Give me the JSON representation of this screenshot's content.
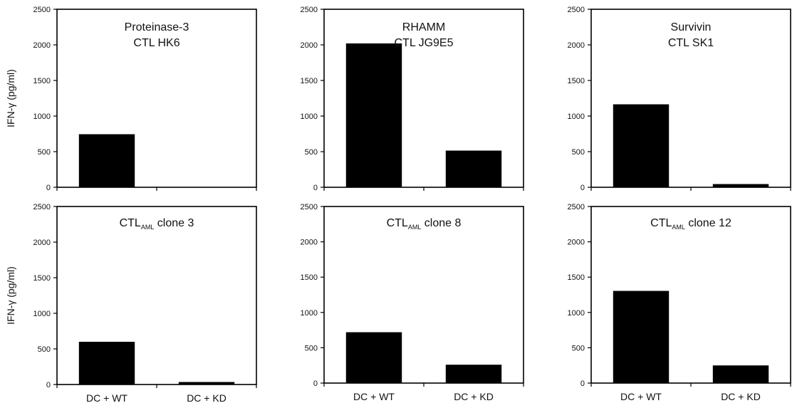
{
  "figure": {
    "ylabel": "IFN-γ (pg/ml)"
  },
  "chart_data": [
    {
      "type": "bar",
      "title_lines": [
        "Proteinase-3",
        "CTL HK6"
      ],
      "categories": [
        "DC + WT",
        "DC + KD"
      ],
      "series": [
        {
          "values": [
            745,
            0
          ]
        }
      ],
      "ylim": [
        0,
        2500
      ],
      "yticks": [
        "0",
        "500",
        "1000",
        "1500",
        "2000",
        "2500"
      ],
      "ylabel": "IFN-γ (pg/ml)",
      "show_xticklabels": false
    },
    {
      "type": "bar",
      "title_lines": [
        "RHAMM",
        "CTL JG9E5"
      ],
      "categories": [
        "DC + WT",
        "DC + KD"
      ],
      "series": [
        {
          "values": [
            2020,
            515
          ]
        }
      ],
      "ylim": [
        0,
        2500
      ],
      "yticks": [
        "0",
        "500",
        "1000",
        "1500",
        "2000",
        "2500"
      ],
      "ylabel": "",
      "show_xticklabels": false
    },
    {
      "type": "bar",
      "title_lines": [
        "Survivin",
        "CTL SK1"
      ],
      "categories": [
        "DC + WT",
        "DC + KD"
      ],
      "series": [
        {
          "values": [
            1165,
            45
          ]
        }
      ],
      "ylim": [
        0,
        2500
      ],
      "yticks": [
        "0",
        "500",
        "1000",
        "1500",
        "2000",
        "2500"
      ],
      "ylabel": "",
      "show_xticklabels": false
    },
    {
      "type": "bar",
      "title_main": "CTL",
      "title_sub": "AML",
      "title_rest": " clone 3",
      "categories": [
        "DC + WT",
        "DC + KD"
      ],
      "series": [
        {
          "values": [
            600,
            35
          ]
        }
      ],
      "ylim": [
        0,
        2500
      ],
      "yticks": [
        "0",
        "500",
        "1000",
        "1500",
        "2000",
        "2500"
      ],
      "ylabel": "IFN-γ (pg/ml)",
      "show_xticklabels": true
    },
    {
      "type": "bar",
      "title_main": "CTL",
      "title_sub": "AML",
      "title_rest": " clone 8",
      "categories": [
        "DC + WT",
        "DC + KD"
      ],
      "series": [
        {
          "values": [
            720,
            260
          ]
        }
      ],
      "ylim": [
        0,
        2500
      ],
      "yticks": [
        "0",
        "500",
        "1000",
        "1500",
        "2000",
        "2500"
      ],
      "ylabel": "",
      "show_xticklabels": true
    },
    {
      "type": "bar",
      "title_main": "CTL",
      "title_sub": "AML",
      "title_rest": " clone 12",
      "categories": [
        "DC + WT",
        "DC + KD"
      ],
      "series": [
        {
          "values": [
            1305,
            250
          ]
        }
      ],
      "ylim": [
        0,
        2500
      ],
      "yticks": [
        "0",
        "500",
        "1000",
        "1500",
        "2000",
        "2500"
      ],
      "ylabel": "",
      "show_xticklabels": true
    }
  ]
}
